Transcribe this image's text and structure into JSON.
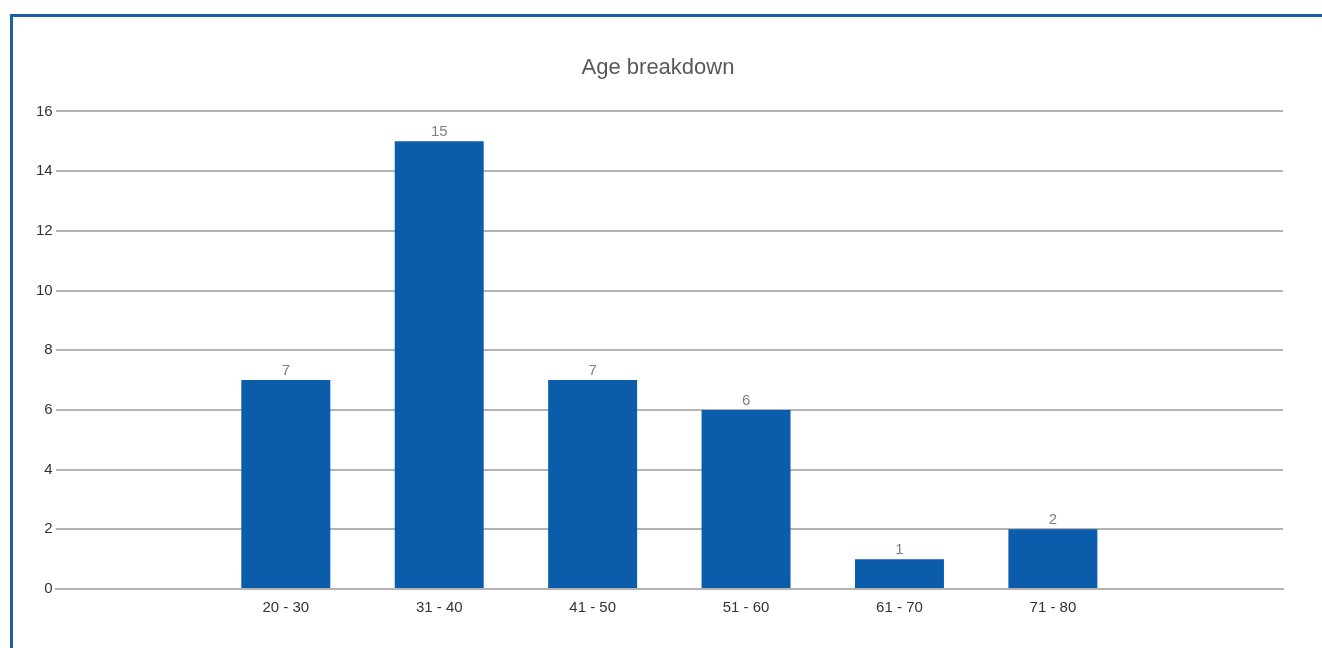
{
  "chart_data": {
    "type": "bar",
    "title": "Age breakdown",
    "categories": [
      null,
      "20 - 30",
      "31 - 40",
      "41 - 50",
      "51 - 60",
      "61 - 70",
      "71 - 80",
      null
    ],
    "values": [
      null,
      7,
      15,
      7,
      6,
      1,
      2,
      null
    ],
    "color": "#0b5cab",
    "ylim": [
      0,
      16
    ],
    "yticks": [
      0,
      2,
      4,
      6,
      8,
      10,
      12,
      14,
      16
    ],
    "grid": "y",
    "data_labels": true,
    "legend": false
  }
}
